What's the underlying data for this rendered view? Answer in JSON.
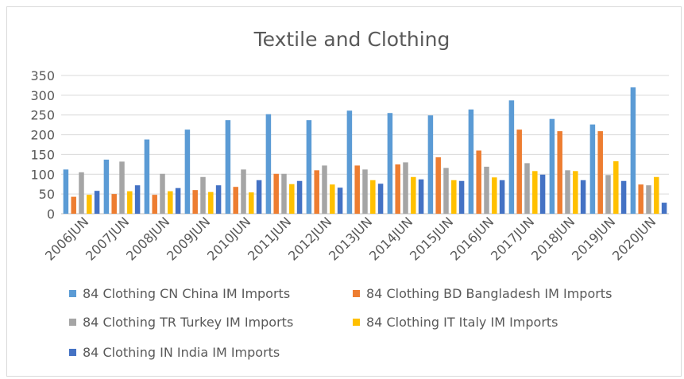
{
  "chart_data": {
    "type": "bar",
    "title": "Textile and Clothing",
    "xlabel": "",
    "ylabel": "",
    "ylim": [
      0,
      350
    ],
    "yticks": [
      0,
      50,
      100,
      150,
      200,
      250,
      300,
      350
    ],
    "grid": true,
    "legend_position": "bottom",
    "categories": [
      "2006JUN",
      "2007JUN",
      "2008JUN",
      "2009JUN",
      "2010JUN",
      "2011JUN",
      "2012JUN",
      "2013JUN",
      "2014JUN",
      "2015JUN",
      "2016JUN",
      "2017JUN",
      "2018JUN",
      "2019JUN",
      "2020JUN"
    ],
    "series": [
      {
        "name": "84 Clothing CN China IM Imports",
        "color": "#5b9bd5",
        "values": [
          112,
          137,
          188,
          213,
          237,
          252,
          237,
          261,
          255,
          249,
          264,
          287,
          240,
          226,
          320
        ]
      },
      {
        "name": "84 Clothing BD Bangladesh IM Imports",
        "color": "#ed7d31",
        "values": [
          43,
          50,
          48,
          60,
          68,
          101,
          110,
          122,
          125,
          143,
          160,
          213,
          209,
          209,
          74
        ]
      },
      {
        "name": "84 Clothing TR Turkey IM Imports",
        "color": "#a5a5a5",
        "values": [
          105,
          132,
          101,
          93,
          112,
          101,
          122,
          112,
          130,
          116,
          119,
          128,
          110,
          98,
          72
        ]
      },
      {
        "name": "84 Clothing IT Italy IM Imports",
        "color": "#ffc000",
        "values": [
          48,
          57,
          57,
          55,
          54,
          75,
          74,
          85,
          93,
          85,
          92,
          108,
          108,
          133,
          93
        ]
      },
      {
        "name": "84 Clothing IN India IM Imports",
        "color": "#4472c4",
        "values": [
          58,
          72,
          65,
          72,
          85,
          83,
          66,
          76,
          87,
          83,
          85,
          99,
          85,
          83,
          28
        ]
      }
    ]
  }
}
